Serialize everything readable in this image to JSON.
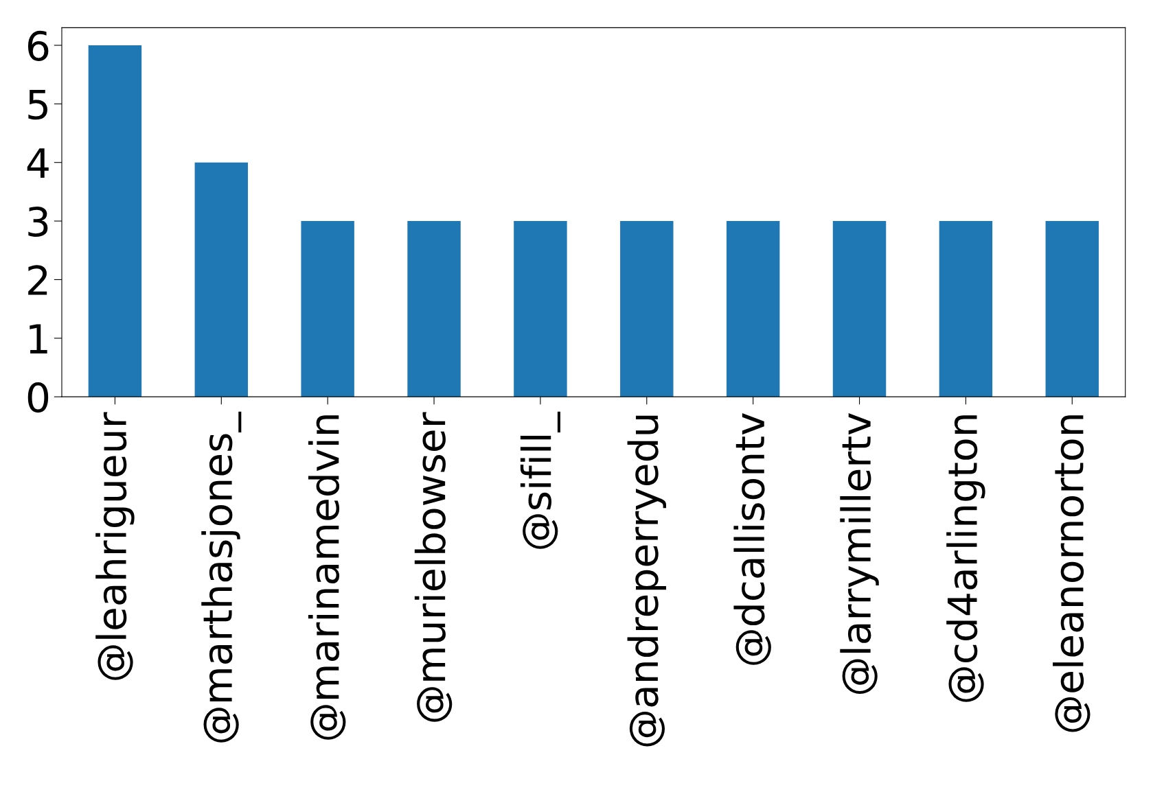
{
  "chart_data": {
    "type": "bar",
    "categories": [
      "@leahrigueur",
      "@marthasjones_",
      "@marinamedvin",
      "@murielbowser",
      "@sifill_",
      "@andreperryedu",
      "@dcallisontv",
      "@larrymillertv",
      "@cd4arlington",
      "@eleanornorton"
    ],
    "values": [
      6,
      4,
      3,
      3,
      3,
      3,
      3,
      3,
      3,
      3
    ],
    "color": "#1f77b4",
    "ylim": [
      0,
      6.3
    ],
    "yticks": [
      0,
      1,
      2,
      3,
      4,
      5,
      6
    ],
    "grid": false
  }
}
